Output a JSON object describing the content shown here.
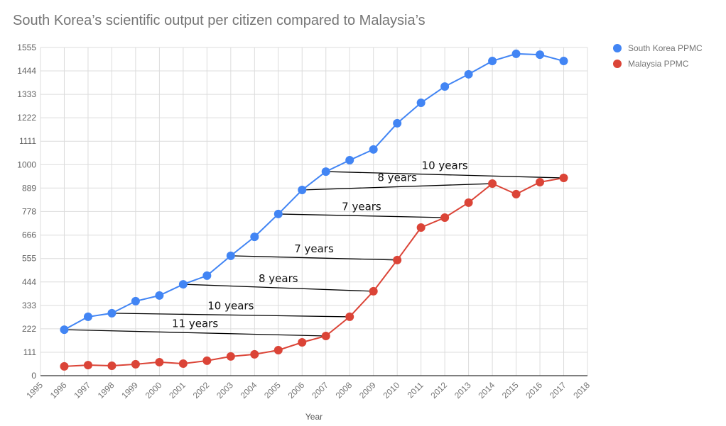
{
  "chart_data": {
    "type": "line",
    "title": "South Korea’s scientific output per citizen compared to Malaysia’s",
    "xlabel": "Year",
    "ylabel": "",
    "xlim": [
      1995,
      2018
    ],
    "ylim": [
      0,
      1555
    ],
    "x_ticks": [
      "1995",
      "1996",
      "1997",
      "1998",
      "1999",
      "2000",
      "2001",
      "2002",
      "2003",
      "2004",
      "2005",
      "2006",
      "2007",
      "2008",
      "2009",
      "2010",
      "2011",
      "2012",
      "2013",
      "2014",
      "2015",
      "2016",
      "2017",
      "2018"
    ],
    "y_ticks": [
      "0",
      "111",
      "222",
      "333",
      "444",
      "555",
      "666",
      "778",
      "889",
      "1000",
      "1111",
      "1222",
      "1333",
      "1444",
      "1555"
    ],
    "grid": true,
    "legend_position": "top-right",
    "x": [
      1996,
      1997,
      1998,
      1999,
      2000,
      2001,
      2002,
      2003,
      2004,
      2005,
      2006,
      2007,
      2008,
      2009,
      2010,
      2011,
      2012,
      2013,
      2014,
      2015,
      2016,
      2017
    ],
    "series": [
      {
        "name": "South Korea PPMC",
        "color": "#4285f4",
        "values": [
          218,
          279,
          296,
          353,
          380,
          433,
          474,
          568,
          658,
          766,
          880,
          967,
          1021,
          1072,
          1196,
          1293,
          1370,
          1428,
          1491,
          1525,
          1521,
          1491
        ]
      },
      {
        "name": "Malaysia PPMC",
        "color": "#db4437",
        "values": [
          44,
          50,
          47,
          54,
          64,
          57,
          71,
          91,
          101,
          121,
          158,
          188,
          279,
          400,
          548,
          702,
          749,
          820,
          910,
          860,
          917,
          937
        ]
      }
    ],
    "annotations": [
      {
        "label": "11 years",
        "from_year": 1996,
        "to_year": 2007
      },
      {
        "label": "10 years",
        "from_year": 1998,
        "to_year": 2008
      },
      {
        "label": "8 years",
        "from_year": 2001,
        "to_year": 2009
      },
      {
        "label": "7 years",
        "from_year": 2003,
        "to_year": 2010
      },
      {
        "label": "7 years",
        "from_year": 2005,
        "to_year": 2012
      },
      {
        "label": "8 years",
        "from_year": 2006,
        "to_year": 2014
      },
      {
        "label": "10 years",
        "from_year": 2007,
        "to_year": 2017
      }
    ]
  }
}
